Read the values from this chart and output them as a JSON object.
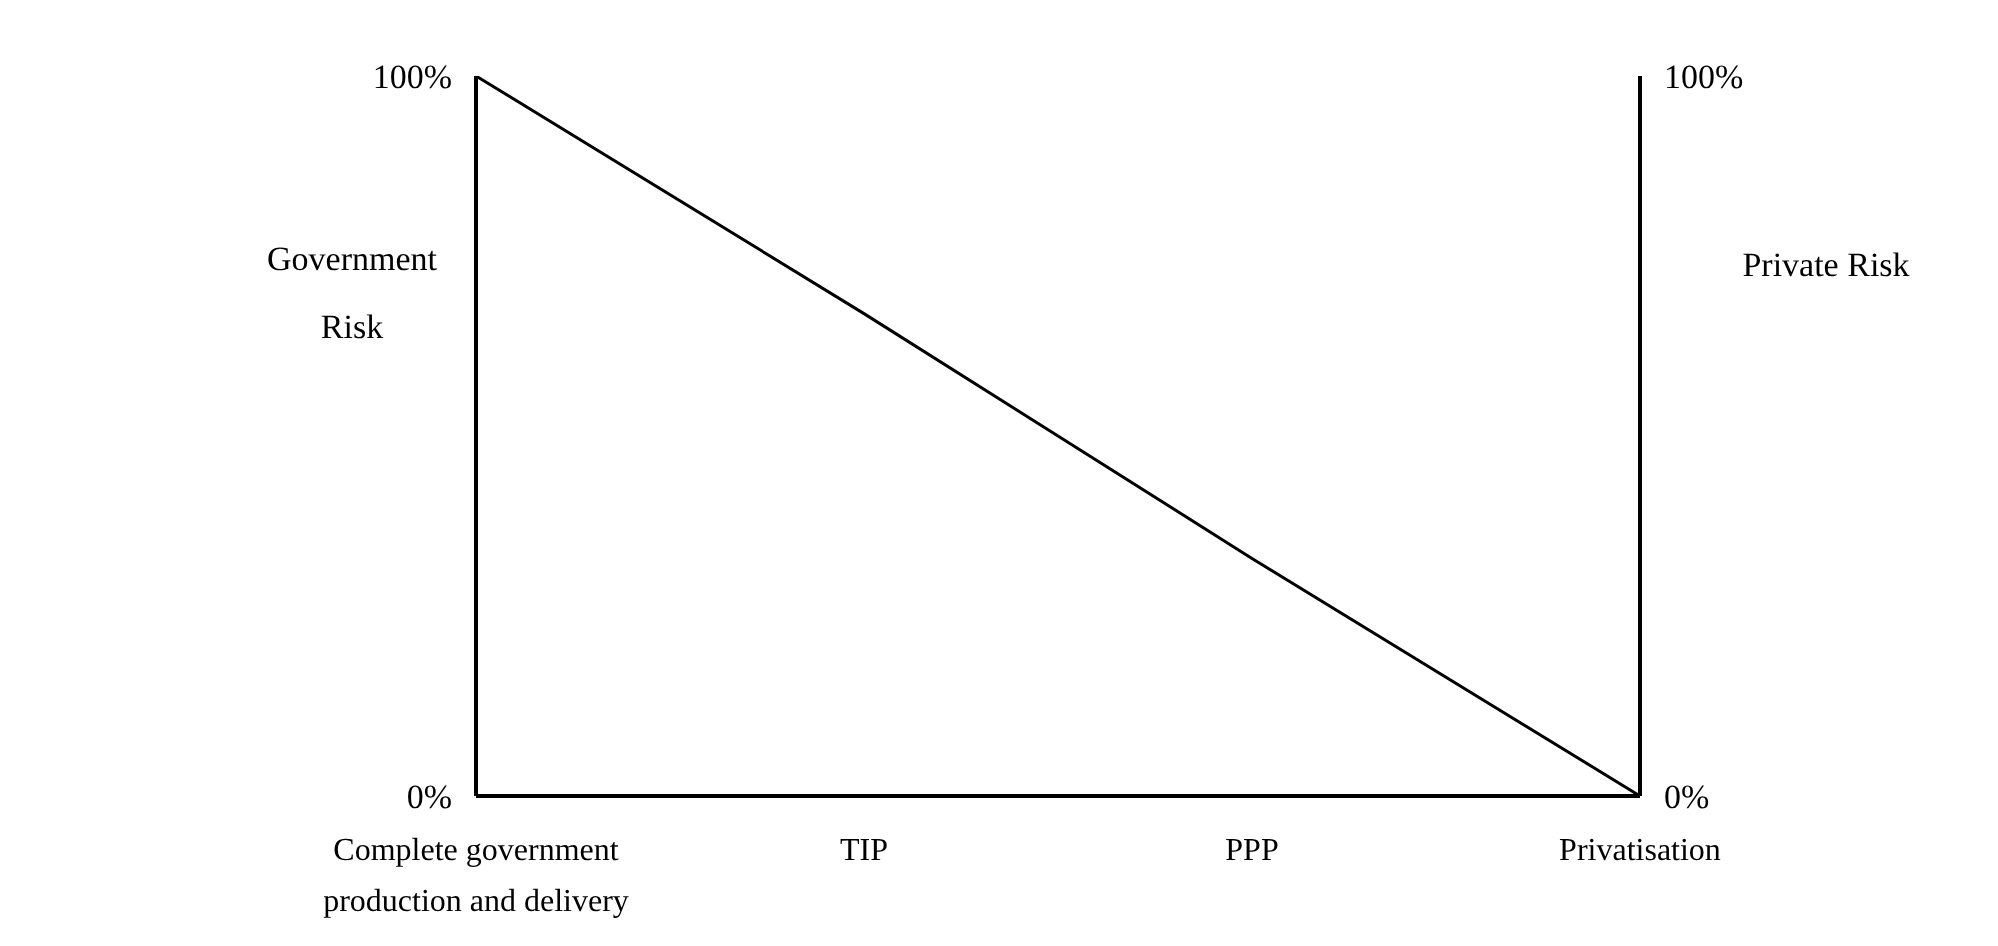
{
  "chart_data": {
    "type": "line",
    "ylabel": "Government Risk",
    "y2label": "Private Risk",
    "categories": [
      "Complete government production and delivery",
      "TIP",
      "PPP",
      "Privatisation"
    ],
    "series": [
      {
        "color": "#000000",
        "values": [
          100,
          67,
          33,
          0
        ]
      }
    ],
    "ylim": [
      0,
      100
    ],
    "yticks": [
      {
        "value": 0,
        "label": "0%"
      },
      {
        "value": 100,
        "label": "100%"
      }
    ],
    "y2lim": [
      0,
      100
    ],
    "y2ticks": [
      {
        "value": 0,
        "label": "0%"
      },
      {
        "value": 100,
        "label": "100%"
      }
    ],
    "marker": "none",
    "line_style": "solid"
  }
}
